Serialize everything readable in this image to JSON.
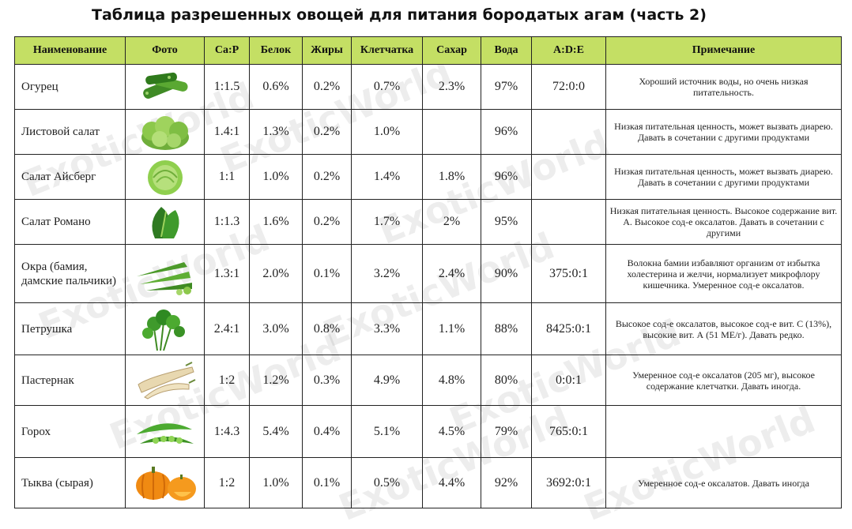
{
  "title": "Таблица разрешенных овощей для питания бородатых агам (часть 2)",
  "watermark": "ExoticWorld",
  "columns": [
    "Наименование",
    "Фото",
    "Ca:P",
    "Белок",
    "Жиры",
    "Клетчатка",
    "Сахар",
    "Вода",
    "A:D:E",
    "Примечание"
  ],
  "rows": [
    {
      "name": "Огурец",
      "photo_icon": "cucumber-icon",
      "ca_p": "1:1.5",
      "protein": "0.6%",
      "fat": "0.2%",
      "fiber": "0.7%",
      "sugar": "2.3%",
      "water": "97%",
      "ade": "72:0:0",
      "note": "Хороший источник воды, но очень низкая питательность."
    },
    {
      "name": "Листовой салат",
      "photo_icon": "leaf-lettuce-icon",
      "ca_p": "1.4:1",
      "protein": "1.3%",
      "fat": "0.2%",
      "fiber": "1.0%",
      "sugar": "",
      "water": "96%",
      "ade": "",
      "note": "Низкая питательная ценность, может вызвать диарею. Давать в сочетании с другими продуктами"
    },
    {
      "name": "Салат Айсберг",
      "photo_icon": "iceberg-lettuce-icon",
      "ca_p": "1:1",
      "protein": "1.0%",
      "fat": "0.2%",
      "fiber": "1.4%",
      "sugar": "1.8%",
      "water": "96%",
      "ade": "",
      "note": "Низкая питательная ценность, может вызвать диарею. Давать в сочетании с другими продуктами"
    },
    {
      "name": "Салат Романо",
      "photo_icon": "romaine-lettuce-icon",
      "ca_p": "1:1.3",
      "protein": "1.6%",
      "fat": "0.2%",
      "fiber": "1.7%",
      "sugar": "2%",
      "water": "95%",
      "ade": "",
      "note": "Низкая питательная ценность. Высокое содержание вит. А. Высокое сод-е оксалатов. Давать в сочетании с другими"
    },
    {
      "name": "Окра (бамия, дамские пальчики)",
      "photo_icon": "okra-icon",
      "ca_p": "1.3:1",
      "protein": "2.0%",
      "fat": "0.1%",
      "fiber": "3.2%",
      "sugar": "2.4%",
      "water": "90%",
      "ade": "375:0:1",
      "note": "Волокна бамии избавляют организм от избытка холестерина и желчи, нормализует микрофлору кишечника. Умеренное сод-е оксалатов."
    },
    {
      "name": "Петрушка",
      "photo_icon": "parsley-icon",
      "ca_p": "2.4:1",
      "protein": "3.0%",
      "fat": "0.8%",
      "fiber": "3.3%",
      "sugar": "1.1%",
      "water": "88%",
      "ade": "8425:0:1",
      "note": "Высокое сод-е оксалатов, высокое сод-е вит. С (13%), высокие вит. А (51 МЕ/г). Давать редко."
    },
    {
      "name": "Пастернак",
      "photo_icon": "parsnip-icon",
      "ca_p": "1:2",
      "protein": "1.2%",
      "fat": "0.3%",
      "fiber": "4.9%",
      "sugar": "4.8%",
      "water": "80%",
      "ade": "0:0:1",
      "note": "Умеренное сод-е оксалатов (205 мг), высокое содержание клетчатки. Давать иногда."
    },
    {
      "name": "Горох",
      "photo_icon": "peas-icon",
      "ca_p": "1:4.3",
      "protein": "5.4%",
      "fat": "0.4%",
      "fiber": "5.1%",
      "sugar": "4.5%",
      "water": "79%",
      "ade": "765:0:1",
      "note": ""
    },
    {
      "name": "Тыква (сырая)",
      "photo_icon": "pumpkin-icon",
      "ca_p": "1:2",
      "protein": "1.0%",
      "fat": "0.1%",
      "fiber": "0.5%",
      "sugar": "4.4%",
      "water": "92%",
      "ade": "3692:0:1",
      "note": "Умеренное сод-е оксалатов. Давать иногда"
    }
  ]
}
